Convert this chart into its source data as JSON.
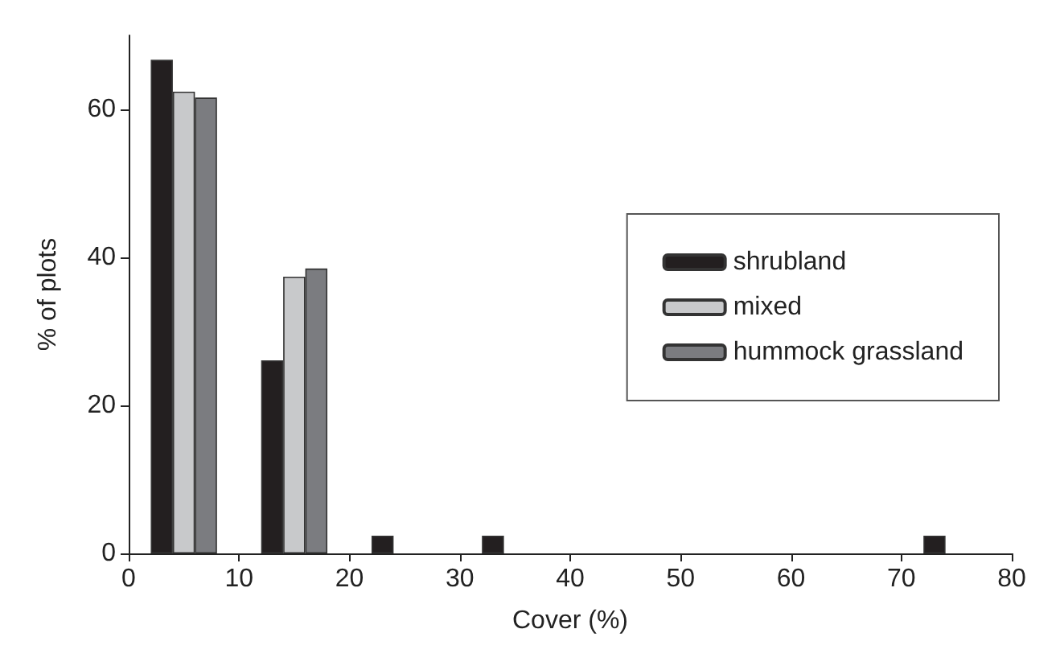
{
  "chart_data": {
    "type": "bar",
    "xlabel": "Cover (%)",
    "ylabel": "% of plots",
    "xlim": [
      0,
      80
    ],
    "xticks": [
      0,
      10,
      20,
      30,
      40,
      50,
      60,
      70,
      80
    ],
    "ylim": [
      0,
      70
    ],
    "yticks": [
      0,
      20,
      40,
      60
    ],
    "series": [
      {
        "name": "shrubland",
        "color": "#231f20",
        "x": [
          3,
          13,
          23,
          33,
          73
        ],
        "values": [
          66.7,
          26.1,
          2.4,
          2.4,
          2.4
        ]
      },
      {
        "name": "mixed",
        "color": "#c8c9cb",
        "x": [
          5,
          15
        ],
        "values": [
          62.4,
          37.4
        ]
      },
      {
        "name": "hummock grassland",
        "color": "#7b7c80",
        "x": [
          7,
          17
        ],
        "values": [
          61.6,
          38.5
        ]
      }
    ],
    "grid": false,
    "legend": "right"
  }
}
